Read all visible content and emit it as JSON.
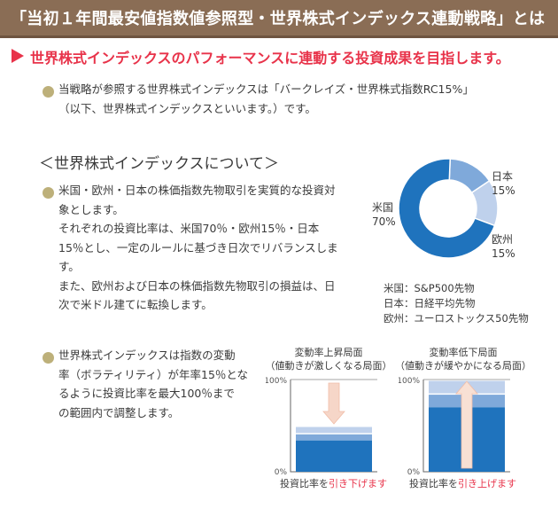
{
  "title": "「当初１年間最安値指数値参照型・世界株式インデックス連動戦略」とは",
  "tagline": "世界株式インデックスのパフォーマンスに連動する投資成果を目指します。",
  "intro": {
    "line1": "当戦略が参照する世界株式インデックスは「バークレイズ・世界株式指数RC15%」",
    "line2": "（以下、世界株式インデックスといいます。）です。"
  },
  "section_heading": "＜世界株式インデックスについて＞",
  "about": {
    "lines": [
      "米国・欧州・日本の株価指数先物取引を実質的な投資対",
      "象とします。",
      "それぞれの投資比率は、米国70％・欧州15％・日本",
      "15％とし、一定のルールに基づき日次でリバランスしま",
      "す。",
      "また、欧州および日本の株価指数先物取引の損益は、日",
      "次で米ドル建てに転換します。"
    ]
  },
  "vol": {
    "lines": [
      "世界株式インデックスは指数の変動",
      "率（ボラティリティ）が年率15％とな",
      "るように投資比率を最大100％まで",
      "の範囲内で調整します。"
    ]
  },
  "chart_data": [
    {
      "type": "pie",
      "categories": [
        "米国",
        "日本",
        "欧州"
      ],
      "values": [
        70,
        15,
        15
      ],
      "labels": [
        "70%",
        "15%",
        "15%"
      ],
      "colors": [
        "#1f73bd",
        "#7fa9da",
        "#bfd1ec"
      ],
      "legend": [
        "米国：S&P500先物",
        "日本：日経平均先物",
        "欧州：ユーロストックス50先物"
      ]
    },
    {
      "type": "bar",
      "title_lines": [
        "変動率上昇局面",
        "（値動きが激しくなる局面）"
      ],
      "ytick_labels": [
        "100%",
        "0%"
      ],
      "ylim": [
        0,
        100
      ],
      "stack": [
        {
          "value": 34,
          "color": "#1f73bd"
        },
        {
          "value": 8,
          "color": "#7fa9da"
        },
        {
          "value": 8,
          "color": "#bfd1ec"
        }
      ],
      "arrow": "down",
      "caption_pre": "投資比率を",
      "caption_hl": "引き下げます"
    },
    {
      "type": "bar",
      "title_lines": [
        "変動率低下局面",
        "（値動きが緩やかになる局面）"
      ],
      "ytick_labels": [
        "100%",
        "0%"
      ],
      "ylim": [
        0,
        100
      ],
      "stack": [
        {
          "value": 70,
          "color": "#1f73bd"
        },
        {
          "value": 15,
          "color": "#7fa9da"
        },
        {
          "value": 15,
          "color": "#bfd1ec"
        }
      ],
      "arrow": "up",
      "caption_pre": "投資比率を",
      "caption_hl": "引き上げます"
    }
  ]
}
